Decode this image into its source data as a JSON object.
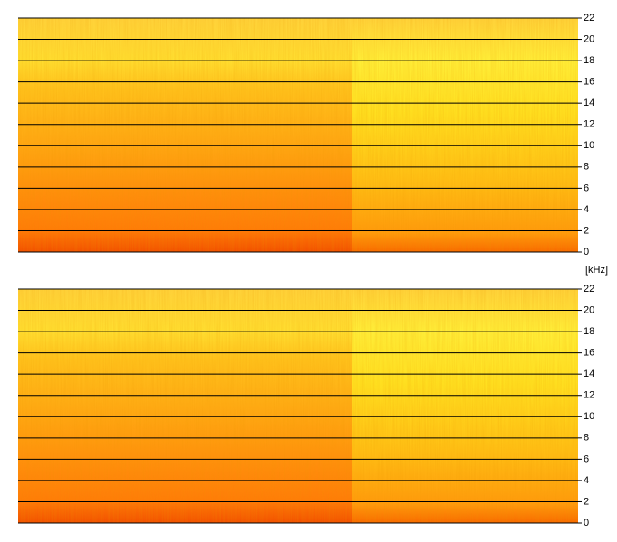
{
  "chart_data": [
    {
      "type": "spectrogram",
      "ylim": [
        0,
        22
      ],
      "yticks": [
        0,
        2,
        4,
        6,
        8,
        10,
        12,
        14,
        16,
        18,
        20,
        22
      ],
      "ylabel": "[kHz]",
      "grid": true
    },
    {
      "type": "spectrogram",
      "ylim": [
        0,
        22
      ],
      "yticks": [
        0,
        2,
        4,
        6,
        8,
        10,
        12,
        14,
        16,
        18,
        20,
        22
      ],
      "grid": true
    }
  ]
}
